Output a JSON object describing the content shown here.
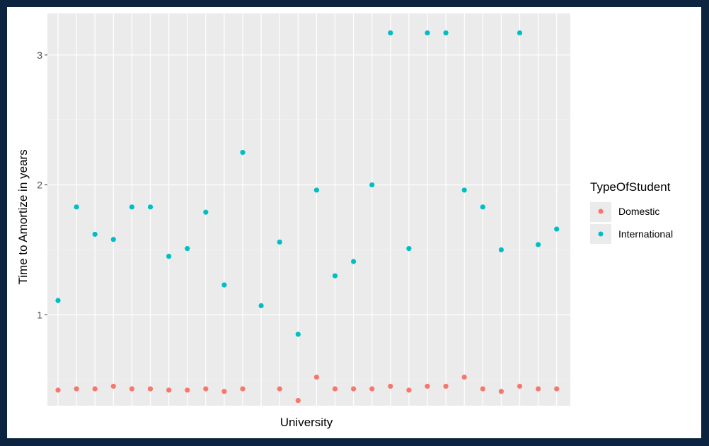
{
  "chart_data": {
    "type": "scatter",
    "xlabel": "University",
    "ylabel": "Time to Amortize in years",
    "ylim": [
      0.3,
      3.32
    ],
    "y_ticks": [
      1,
      2,
      3
    ],
    "y_tick_labels": [
      "1",
      "2",
      "3"
    ],
    "x_count": 28,
    "grid": true,
    "legend": {
      "title": "TypeOfStudent",
      "placement": "right"
    },
    "series": [
      {
        "name": "Domestic",
        "color": "#f8766d",
        "values": [
          0.42,
          0.43,
          0.43,
          0.45,
          0.43,
          0.43,
          0.42,
          0.42,
          0.43,
          0.41,
          0.43,
          null,
          0.43,
          0.34,
          0.52,
          0.43,
          0.43,
          0.43,
          0.45,
          0.42,
          0.45,
          0.45,
          0.52,
          0.43,
          0.41,
          0.45,
          0.43,
          0.43
        ]
      },
      {
        "name": "International",
        "color": "#00bfc4",
        "values": [
          1.11,
          1.83,
          1.62,
          1.58,
          1.83,
          1.83,
          1.45,
          1.51,
          1.79,
          1.23,
          2.25,
          1.07,
          1.56,
          0.85,
          1.96,
          1.3,
          1.41,
          2.0,
          3.17,
          1.51,
          3.17,
          3.17,
          1.96,
          1.83,
          1.5,
          3.17,
          1.54,
          1.66
        ]
      }
    ]
  }
}
